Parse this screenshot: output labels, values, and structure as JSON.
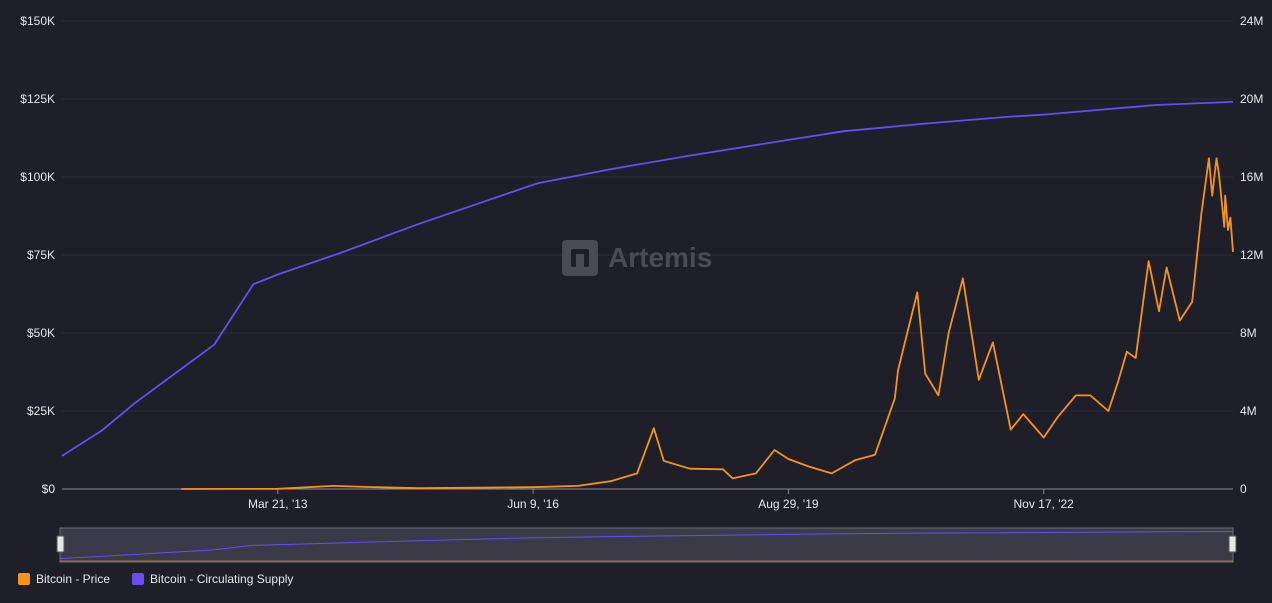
{
  "watermark": "Artemis",
  "legend": [
    {
      "label": "Bitcoin - Price",
      "color": "#f7931a"
    },
    {
      "label": "Bitcoin - Circulating Supply",
      "color": "#6a4cf0"
    }
  ],
  "chart_data": {
    "type": "line",
    "title": "",
    "y_left": {
      "ticks": [
        "$0",
        "$25K",
        "$50K",
        "$75K",
        "$100K",
        "$125K",
        "$150K"
      ],
      "range": [
        0,
        150000
      ]
    },
    "y_right": {
      "ticks": [
        "0",
        "4M",
        "8M",
        "12M",
        "16M",
        "20M",
        "24M"
      ],
      "range": [
        0,
        24000000
      ]
    },
    "x_ticks": [
      "Mar 21, '13",
      "Jun 9, '16",
      "Aug 29, '19",
      "Nov 17, '22"
    ],
    "x_range": [
      "2010-07-01",
      "2025-04-07"
    ],
    "grid": true,
    "legend_position": "bottom-left",
    "series": [
      {
        "name": "Bitcoin - Price",
        "color": "#f7931a",
        "axis": "left",
        "points": [
          [
            "2012-01-01",
            5
          ],
          [
            "2013-03-21",
            70
          ],
          [
            "2013-12-01",
            1000
          ],
          [
            "2014-06-01",
            600
          ],
          [
            "2015-01-01",
            250
          ],
          [
            "2016-06-09",
            580
          ],
          [
            "2017-01-01",
            1000
          ],
          [
            "2017-06-01",
            2500
          ],
          [
            "2017-10-01",
            5000
          ],
          [
            "2017-12-17",
            19500
          ],
          [
            "2018-02-01",
            9000
          ],
          [
            "2018-06-01",
            6500
          ],
          [
            "2018-11-01",
            6300
          ],
          [
            "2018-12-15",
            3400
          ],
          [
            "2019-04-01",
            5000
          ],
          [
            "2019-06-26",
            12500
          ],
          [
            "2019-08-29",
            9600
          ],
          [
            "2019-12-01",
            7200
          ],
          [
            "2020-03-15",
            5000
          ],
          [
            "2020-07-01",
            9200
          ],
          [
            "2020-10-01",
            11000
          ],
          [
            "2020-12-31",
            29000
          ],
          [
            "2021-01-15",
            38000
          ],
          [
            "2021-04-14",
            63000
          ],
          [
            "2021-05-20",
            37000
          ],
          [
            "2021-07-20",
            30000
          ],
          [
            "2021-09-05",
            50000
          ],
          [
            "2021-11-10",
            67500
          ],
          [
            "2022-01-22",
            35000
          ],
          [
            "2022-03-28",
            47000
          ],
          [
            "2022-06-18",
            19000
          ],
          [
            "2022-08-15",
            24000
          ],
          [
            "2022-11-17",
            16500
          ],
          [
            "2023-01-20",
            23000
          ],
          [
            "2023-04-14",
            30000
          ],
          [
            "2023-06-20",
            30000
          ],
          [
            "2023-09-11",
            25000
          ],
          [
            "2023-10-24",
            34000
          ],
          [
            "2023-12-05",
            44000
          ],
          [
            "2024-01-15",
            42000
          ],
          [
            "2024-03-14",
            73000
          ],
          [
            "2024-05-01",
            57000
          ],
          [
            "2024-06-05",
            71000
          ],
          [
            "2024-08-05",
            54000
          ],
          [
            "2024-10-01",
            60000
          ],
          [
            "2024-11-12",
            88000
          ],
          [
            "2024-12-17",
            106000
          ],
          [
            "2025-01-01",
            94000
          ],
          [
            "2025-01-21",
            106000
          ],
          [
            "2025-02-01",
            101000
          ],
          [
            "2025-02-26",
            84000
          ],
          [
            "2025-03-02",
            94000
          ],
          [
            "2025-03-15",
            83000
          ],
          [
            "2025-03-26",
            87000
          ],
          [
            "2025-04-07",
            76000
          ]
        ]
      },
      {
        "name": "Bitcoin - Circulating Supply",
        "color": "#6a4cf0",
        "axis": "right",
        "points": [
          [
            "2010-07-01",
            1700000
          ],
          [
            "2011-01-01",
            3000000
          ],
          [
            "2011-06-01",
            4400000
          ],
          [
            "2011-12-01",
            5900000
          ],
          [
            "2012-06-01",
            7400000
          ],
          [
            "2012-11-28",
            10500000
          ],
          [
            "2013-03-21",
            11000000
          ],
          [
            "2014-01-01",
            12100000
          ],
          [
            "2015-01-01",
            13600000
          ],
          [
            "2016-06-09",
            15600000
          ],
          [
            "2016-07-09",
            15700000
          ],
          [
            "2017-06-01",
            16400000
          ],
          [
            "2018-06-01",
            17100000
          ],
          [
            "2019-08-29",
            17900000
          ],
          [
            "2020-05-11",
            18350000
          ],
          [
            "2021-06-01",
            18750000
          ],
          [
            "2022-06-01",
            19080000
          ],
          [
            "2022-11-17",
            19200000
          ],
          [
            "2024-04-19",
            19690000
          ],
          [
            "2025-04-07",
            19850000
          ]
        ]
      }
    ]
  }
}
